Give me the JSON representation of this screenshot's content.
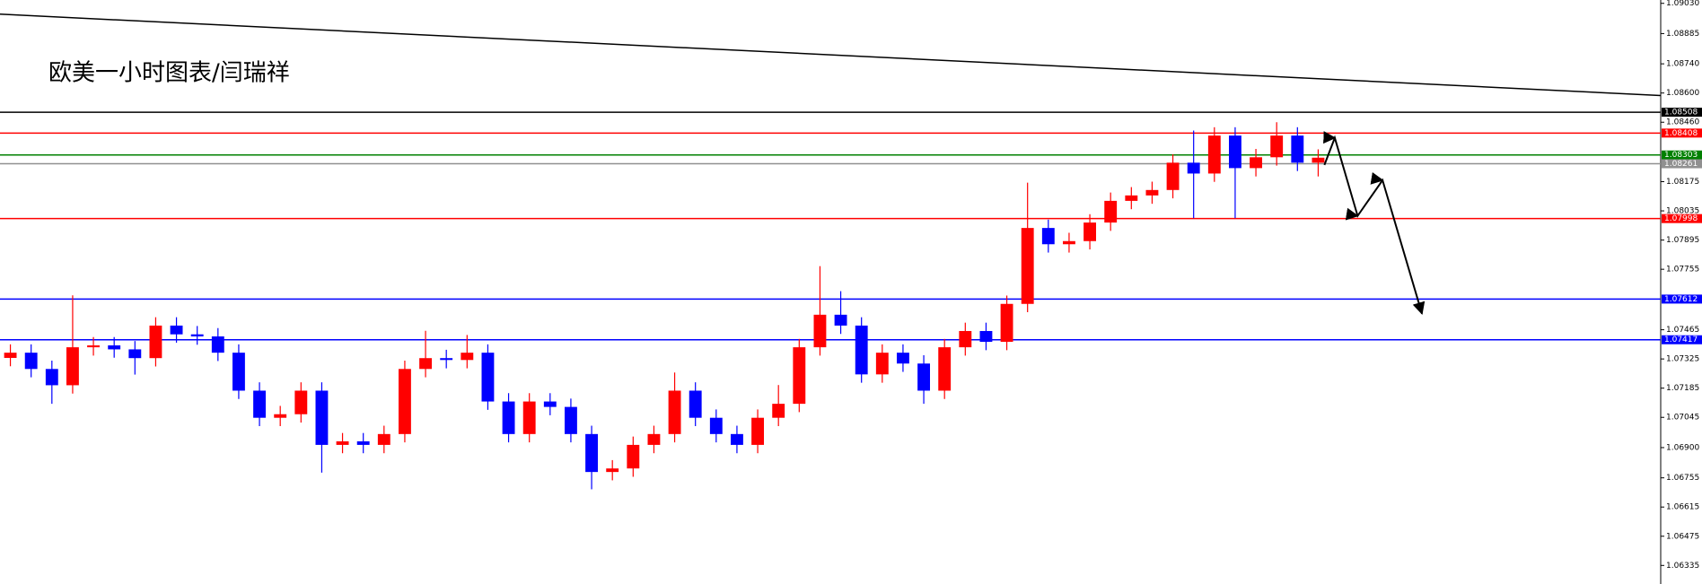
{
  "chart_data": {
    "type": "candlestick",
    "title": "欧美一小时图表/闫瑞祥",
    "ylim": [
      1.06246,
      1.09046
    ],
    "xlim": [
      0,
      80
    ],
    "yticks": [
      {
        "value": 1.0903,
        "label": "1.09030"
      },
      1.08885,
      {
        "value": 1.0874,
        "label": "1.08740"
      },
      {
        "value": 1.086,
        "label": "1.08600"
      },
      {
        "value": 1.0846,
        "label": "1.08460"
      },
      1.08175,
      1.08035,
      1.07895,
      1.07755,
      1.07465,
      1.07325,
      1.07185,
      1.07045,
      {
        "value": 1.069,
        "label": "1.06900"
      },
      1.06755,
      1.06615,
      1.06475,
      1.06335
    ],
    "up_color": "#ff0000",
    "down_color": "#0000ff",
    "ohlc": [
      [
        1.0733,
        1.07395,
        1.0729,
        1.07355
      ],
      [
        1.07355,
        1.07395,
        1.07237,
        1.07277
      ],
      [
        1.07277,
        1.07317,
        1.0711,
        1.07199
      ],
      [
        1.07199,
        1.0763,
        1.07159,
        1.07381
      ],
      [
        1.07381,
        1.0743,
        1.07341,
        1.0739
      ],
      [
        1.0739,
        1.0743,
        1.07331,
        1.07371
      ],
      [
        1.07371,
        1.07411,
        1.0725,
        1.07329
      ],
      [
        1.07329,
        1.07525,
        1.07289,
        1.07485
      ],
      [
        1.07485,
        1.07525,
        1.07403,
        1.07443
      ],
      [
        1.07443,
        1.07483,
        1.07393,
        1.07433
      ],
      [
        1.07433,
        1.07473,
        1.07315,
        1.07355
      ],
      [
        1.07355,
        1.07395,
        1.07133,
        1.07173
      ],
      [
        1.07173,
        1.07213,
        1.07003,
        1.07043
      ],
      [
        1.07043,
        1.071,
        1.07003,
        1.0706
      ],
      [
        1.0706,
        1.07213,
        1.0702,
        1.07173
      ],
      [
        1.07173,
        1.07213,
        1.0678,
        1.06913
      ],
      [
        1.06913,
        1.0697,
        1.06873,
        1.0693
      ],
      [
        1.0693,
        1.0697,
        1.06873,
        1.06913
      ],
      [
        1.06913,
        1.07005,
        1.06873,
        1.06965
      ],
      [
        1.06965,
        1.07317,
        1.06925,
        1.07277
      ],
      [
        1.07277,
        1.0746,
        1.07237,
        1.07329
      ],
      [
        1.07329,
        1.07369,
        1.0728,
        1.0732
      ],
      [
        1.0732,
        1.0744,
        1.0728,
        1.07355
      ],
      [
        1.07355,
        1.07395,
        1.07081,
        1.07121
      ],
      [
        1.07121,
        1.07161,
        1.06925,
        1.06965
      ],
      [
        1.06965,
        1.07161,
        1.06925,
        1.07121
      ],
      [
        1.07121,
        1.07161,
        1.07055,
        1.07095
      ],
      [
        1.07095,
        1.07135,
        1.06925,
        1.06965
      ],
      [
        1.06965,
        1.07005,
        1.067,
        1.06783
      ],
      [
        1.06783,
        1.0684,
        1.06743,
        1.068
      ],
      [
        1.068,
        1.06953,
        1.0676,
        1.06913
      ],
      [
        1.06913,
        1.07005,
        1.06873,
        1.06965
      ],
      [
        1.06965,
        1.0726,
        1.06925,
        1.07173
      ],
      [
        1.07173,
        1.07213,
        1.07003,
        1.07043
      ],
      [
        1.07043,
        1.07083,
        1.06925,
        1.06965
      ],
      [
        1.06965,
        1.07005,
        1.06873,
        1.06913
      ],
      [
        1.06913,
        1.07083,
        1.06873,
        1.07043
      ],
      [
        1.07043,
        1.072,
        1.07003,
        1.0711
      ],
      [
        1.0711,
        1.07421,
        1.0707,
        1.07381
      ],
      [
        1.07381,
        1.0777,
        1.07341,
        1.07537
      ],
      [
        1.07537,
        1.0765,
        1.07445,
        1.07485
      ],
      [
        1.07485,
        1.07525,
        1.07211,
        1.07251
      ],
      [
        1.07251,
        1.07395,
        1.07211,
        1.07355
      ],
      [
        1.07355,
        1.07395,
        1.07263,
        1.07303
      ],
      [
        1.07303,
        1.07343,
        1.0711,
        1.07173
      ],
      [
        1.07173,
        1.07421,
        1.07133,
        1.07381
      ],
      [
        1.07381,
        1.07499,
        1.07341,
        1.07459
      ],
      [
        1.07459,
        1.07499,
        1.07367,
        1.07407
      ],
      [
        1.07407,
        1.07629,
        1.07367,
        1.07589
      ],
      [
        1.07589,
        1.0817,
        1.07549,
        1.07953
      ],
      [
        1.07953,
        1.07993,
        1.07835,
        1.07875
      ],
      [
        1.07875,
        1.0793,
        1.07835,
        1.0789
      ],
      [
        1.0789,
        1.08019,
        1.0785,
        1.07979
      ],
      [
        1.07979,
        1.08123,
        1.07939,
        1.08083
      ],
      [
        1.08083,
        1.08149,
        1.08043,
        1.08109
      ],
      [
        1.08109,
        1.08175,
        1.08069,
        1.08135
      ],
      [
        1.08135,
        1.08306,
        1.08095,
        1.08266
      ],
      [
        1.08266,
        1.0842,
        1.08,
        1.08214
      ],
      [
        1.08214,
        1.08436,
        1.08174,
        1.08396
      ],
      [
        1.08396,
        1.08436,
        1.08,
        1.0824
      ],
      [
        1.0824,
        1.08332,
        1.082,
        1.08292
      ],
      [
        1.08292,
        1.0846,
        1.08252,
        1.08396
      ],
      [
        1.08396,
        1.08436,
        1.08226,
        1.08266
      ],
      [
        1.08266,
        1.0833,
        1.082,
        1.0829
      ]
    ],
    "levels": [
      {
        "value": 1.08508,
        "color": "#000000"
      },
      {
        "value": 1.08408,
        "color": "#ff0000"
      },
      {
        "value": 1.08303,
        "color": "#008000"
      },
      {
        "value": 1.08261,
        "color": "#909090"
      },
      {
        "value": 1.07998,
        "color": "#ff0000"
      },
      {
        "value": 1.07612,
        "color": "#0000ff"
      },
      {
        "value": 1.07417,
        "color": "#0000ff"
      }
    ],
    "trendline": {
      "x": [
        0,
        80
      ],
      "y": [
        1.08978,
        1.08588
      ],
      "color": "#000000"
    },
    "forecast_path": {
      "x": [
        63.8,
        64.3,
        65.4,
        66.6,
        68.5
      ],
      "y": [
        1.08255,
        1.08385,
        1.08011,
        1.08182,
        1.07542
      ],
      "color": "#000000"
    }
  }
}
